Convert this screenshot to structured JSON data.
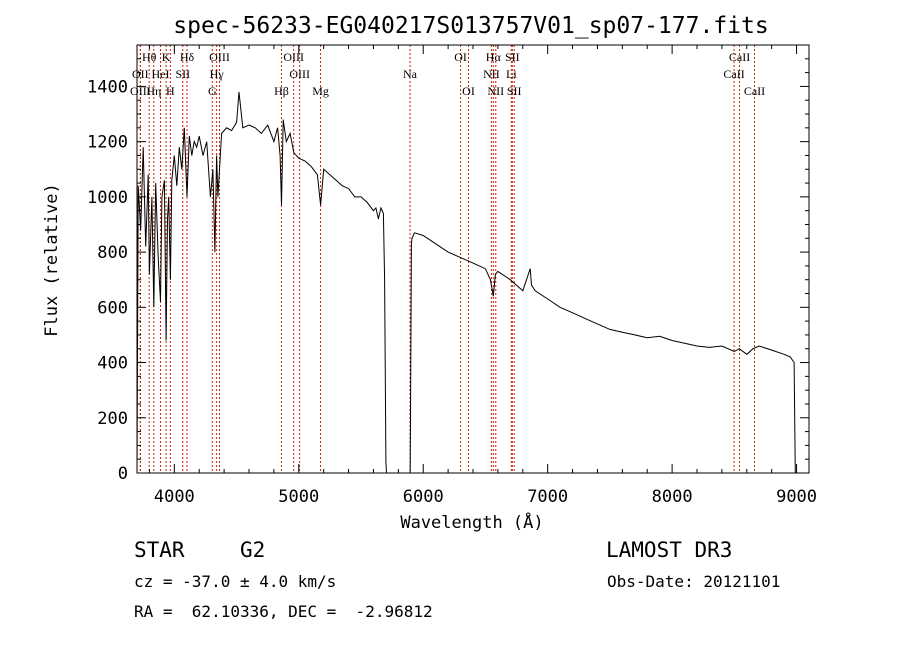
{
  "chart_data": {
    "type": "line",
    "title": "spec-56233-EG040217S013757V01_sp07-177.fits",
    "xlabel": "Wavelength (Å)",
    "ylabel": "Flux (relative)",
    "xlim": [
      3700,
      9100
    ],
    "ylim": [
      0,
      1550
    ],
    "x_ticks": [
      4000,
      5000,
      6000,
      7000,
      8000,
      9000
    ],
    "x_tick_labels": [
      "4000",
      "5000",
      "6000",
      "7000",
      "8000",
      "9000"
    ],
    "y_ticks": [
      0,
      200,
      400,
      600,
      800,
      1000,
      1200,
      1400
    ],
    "y_tick_labels": [
      "0",
      "200",
      "400",
      "600",
      "800",
      "1000",
      "1200",
      "1400"
    ],
    "grid": false,
    "series": [
      {
        "name": "flux",
        "color": "#000000",
        "x": [
          3700,
          3710,
          3730,
          3750,
          3770,
          3790,
          3800,
          3820,
          3835,
          3850,
          3870,
          3889,
          3900,
          3920,
          3934,
          3945,
          3955,
          3968,
          3980,
          4000,
          4020,
          4040,
          4060,
          4080,
          4102,
          4120,
          4140,
          4160,
          4180,
          4200,
          4230,
          4260,
          4290,
          4310,
          4326,
          4340,
          4350,
          4380,
          4420,
          4460,
          4500,
          4520,
          4550,
          4600,
          4650,
          4700,
          4750,
          4800,
          4830,
          4850,
          4861,
          4875,
          4900,
          4930,
          4960,
          5000,
          5050,
          5100,
          5150,
          5175,
          5200,
          5250,
          5300,
          5350,
          5400,
          5450,
          5500,
          5550,
          5600,
          5620,
          5640,
          5660,
          5680,
          5690,
          5695,
          5700,
          5705,
          5710,
          5870,
          5895,
          5905,
          5910,
          5930,
          6000,
          6100,
          6200,
          6300,
          6400,
          6500,
          6540,
          6563,
          6580,
          6600,
          6700,
          6800,
          6860,
          6870,
          6900,
          7000,
          7100,
          7200,
          7300,
          7400,
          7500,
          7600,
          7700,
          7800,
          7900,
          8000,
          8100,
          8200,
          8300,
          8400,
          8500,
          8540,
          8600,
          8650,
          8700,
          8800,
          8900,
          8950,
          8980,
          8985,
          8990
        ],
        "y": [
          0,
          1040,
          880,
          1180,
          820,
          1080,
          720,
          1000,
          600,
          1050,
          780,
          620,
          1000,
          1060,
          480,
          920,
          1000,
          700,
          1060,
          1150,
          1040,
          1180,
          1100,
          1250,
          1000,
          1220,
          1150,
          1200,
          1180,
          1220,
          1150,
          1200,
          1000,
          1100,
          800,
          1150,
          1000,
          1230,
          1250,
          1240,
          1270,
          1380,
          1250,
          1260,
          1250,
          1230,
          1260,
          1200,
          1250,
          1150,
          970,
          1280,
          1200,
          1230,
          1160,
          1140,
          1130,
          1110,
          1080,
          970,
          1100,
          1080,
          1060,
          1040,
          1030,
          1000,
          1000,
          980,
          950,
          960,
          920,
          960,
          940,
          700,
          350,
          40,
          0,
          0,
          0,
          0,
          830,
          850,
          870,
          860,
          830,
          800,
          780,
          760,
          740,
          700,
          640,
          720,
          730,
          700,
          660,
          740,
          680,
          660,
          630,
          600,
          580,
          560,
          540,
          520,
          510,
          500,
          490,
          495,
          480,
          470,
          460,
          455,
          460,
          440,
          450,
          430,
          450,
          460,
          445,
          430,
          420,
          400,
          200,
          0
        ]
      }
    ],
    "line_markers": [
      {
        "label": "Hθ",
        "wavelength": 3798,
        "row": 1
      },
      {
        "label": "OII",
        "wavelength": 3727,
        "row": 2
      },
      {
        "label": "OIII",
        "wavelength": 3727,
        "row": 3
      },
      {
        "label": "K",
        "wavelength": 3934,
        "row": 1
      },
      {
        "label": "HeI",
        "wavelength": 3889,
        "row": 2
      },
      {
        "label": "Hη",
        "wavelength": 3835,
        "row": 3
      },
      {
        "label": "SII",
        "wavelength": 4068,
        "row": 2
      },
      {
        "label": "H",
        "wavelength": 3968,
        "row": 3
      },
      {
        "label": "Hδ",
        "wavelength": 4102,
        "row": 1
      },
      {
        "label": "OIII",
        "wavelength": 4363,
        "row": 1
      },
      {
        "label": "Hγ",
        "wavelength": 4340,
        "row": 2
      },
      {
        "label": "G",
        "wavelength": 4305,
        "row": 3
      },
      {
        "label": "Hβ",
        "wavelength": 4861,
        "row": 3
      },
      {
        "label": "OIII",
        "wavelength": 4959,
        "row": 1
      },
      {
        "label": "OIII",
        "wavelength": 5007,
        "row": 2
      },
      {
        "label": "Mg",
        "wavelength": 5175,
        "row": 3
      },
      {
        "label": "Na",
        "wavelength": 5894,
        "row": 2
      },
      {
        "label": "OI",
        "wavelength": 6300,
        "row": 1
      },
      {
        "label": "OI",
        "wavelength": 6364,
        "row": 3
      },
      {
        "label": "Hα",
        "wavelength": 6563,
        "row": 1
      },
      {
        "label": "NII",
        "wavelength": 6548,
        "row": 2
      },
      {
        "label": "NII",
        "wavelength": 6583,
        "row": 3
      },
      {
        "label": "SII",
        "wavelength": 6716,
        "row": 1
      },
      {
        "label": "Li",
        "wavelength": 6708,
        "row": 2
      },
      {
        "label": "SII",
        "wavelength": 6731,
        "row": 3
      },
      {
        "label": "CaII",
        "wavelength": 8542,
        "row": 1
      },
      {
        "label": "CaII",
        "wavelength": 8498,
        "row": 2
      },
      {
        "label": "CaII",
        "wavelength": 8662,
        "row": 3
      }
    ],
    "marker_color": "#cc2200"
  },
  "info": {
    "object_class": "STAR",
    "subclass": "G2",
    "survey": "LAMOST DR3",
    "redshift_text": "cz = -37.0 ± 4.0 km/s",
    "obs_date": "Obs-Date: 20121101",
    "coords": "RA =  62.10336, DEC =  -2.96812"
  }
}
